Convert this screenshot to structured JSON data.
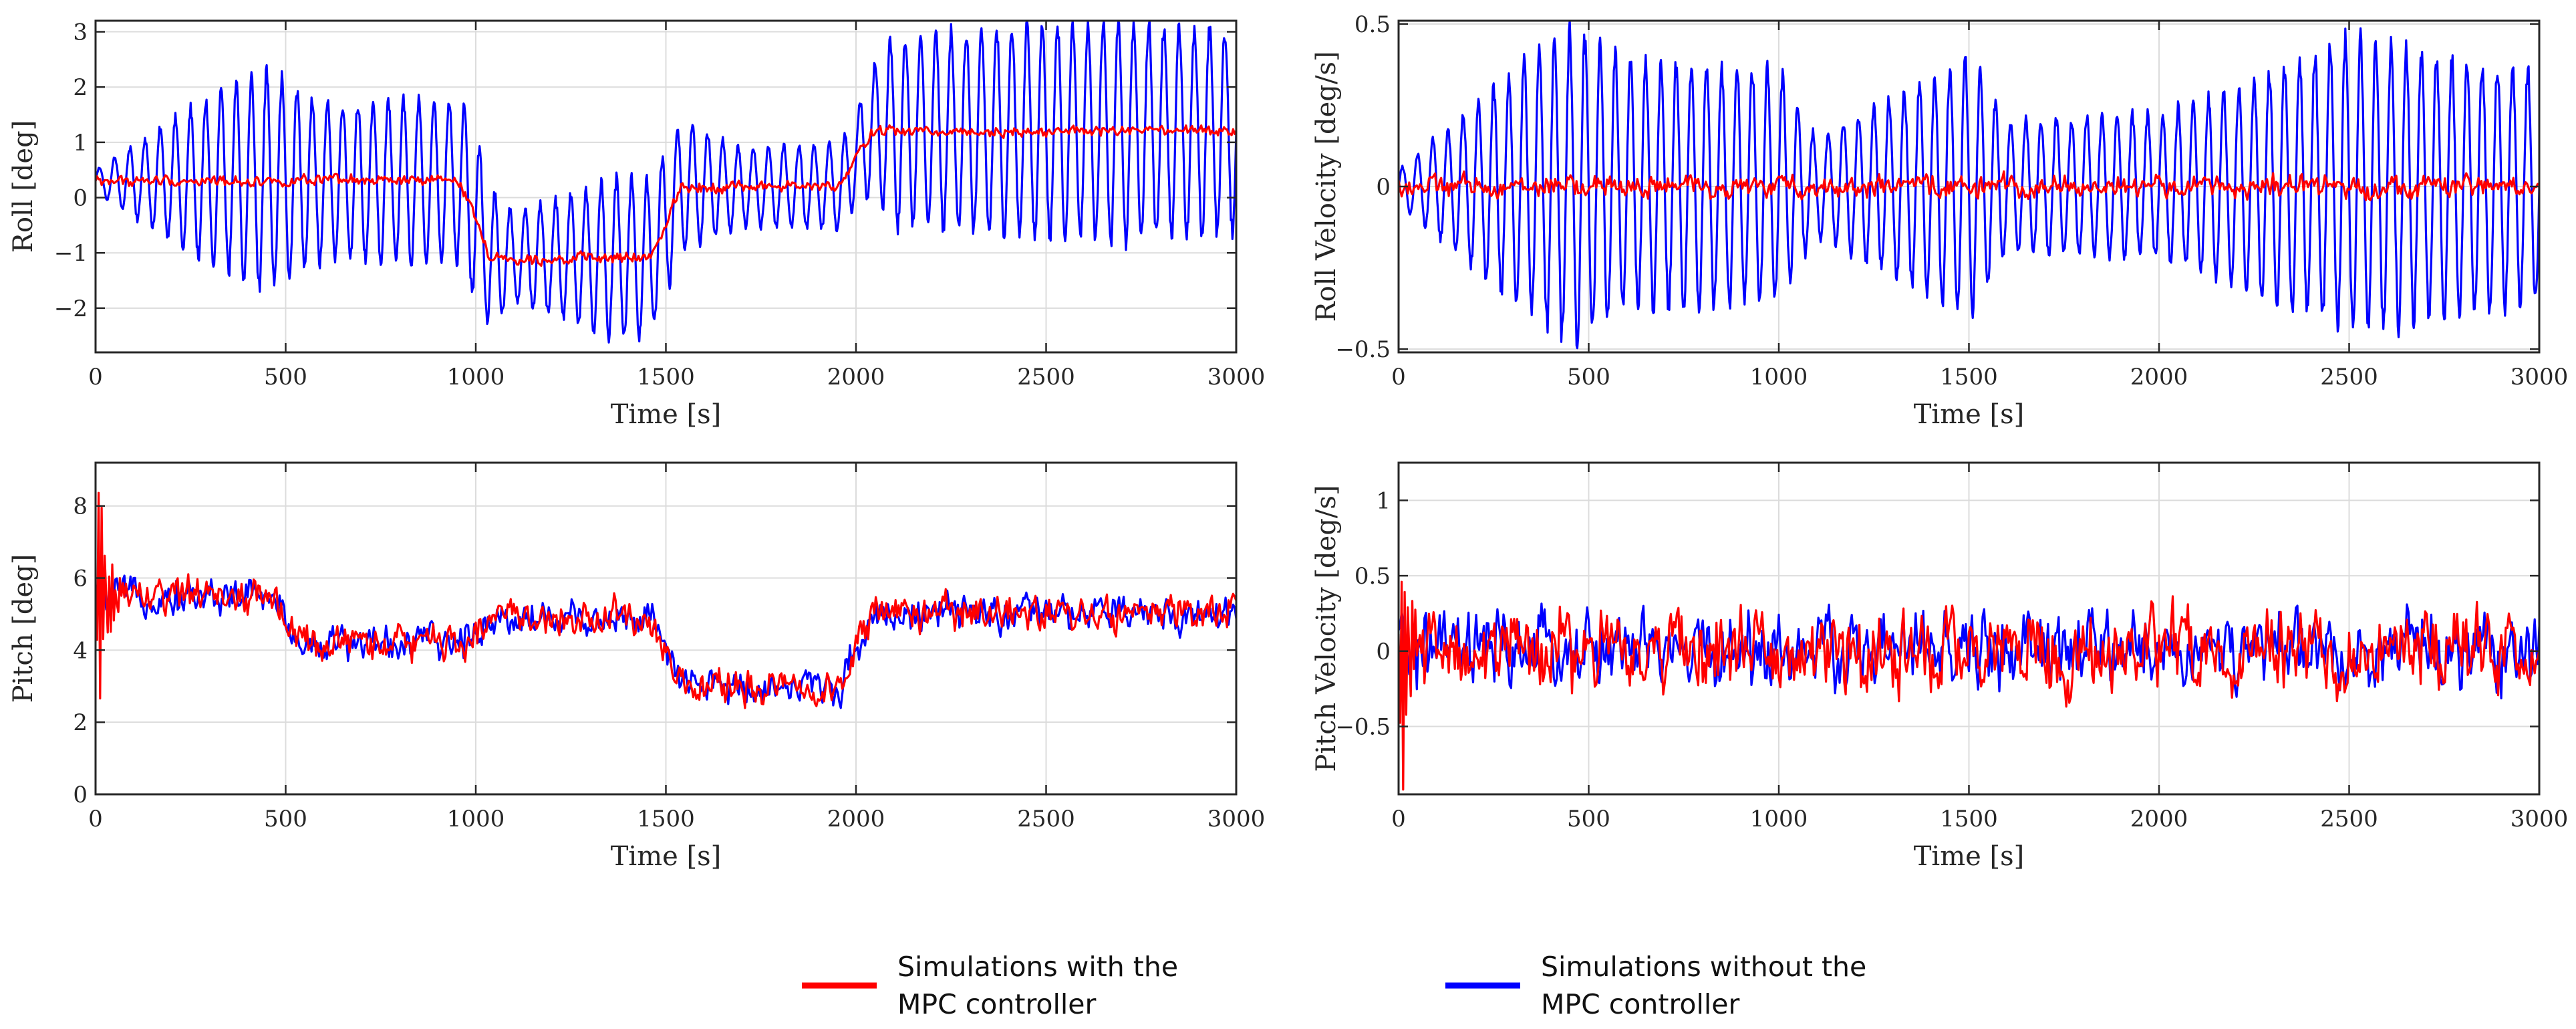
{
  "chart_data": [
    {
      "id": "roll",
      "type": "line",
      "xlabel": "Time [s]",
      "ylabel": "Roll [deg]",
      "xlim": [
        0,
        3000
      ],
      "ylim": [
        -2.8,
        3.2
      ],
      "xticks": [
        0,
        500,
        1000,
        1500,
        2000,
        2500,
        3000
      ],
      "xtick_labels": [
        "0",
        "500",
        "1000",
        "1500",
        "2000",
        "2500",
        "3000"
      ],
      "yticks": [
        -2,
        -1,
        0,
        1,
        2,
        3
      ],
      "ytick_labels": [
        "−2",
        "−1",
        "0",
        "1",
        "2",
        "3"
      ],
      "grid": true,
      "series": [
        {
          "name": "Simulations without the MPC controller",
          "color": "#0000ff",
          "oscillation_period_s": 40,
          "mean_segments": [
            {
              "start": 0,
              "end": 1000,
              "mean": 0.3
            },
            {
              "start": 1000,
              "end": 1500,
              "mean": -1.1
            },
            {
              "start": 1500,
              "end": 2000,
              "mean": 0.2
            },
            {
              "start": 2000,
              "end": 3000,
              "mean": 1.2
            }
          ],
          "amplitude_profile": [
            {
              "t": 0,
              "a": 0.2
            },
            {
              "t": 250,
              "a": 1.3
            },
            {
              "t": 450,
              "a": 2.0
            },
            {
              "t": 600,
              "a": 1.4
            },
            {
              "t": 1000,
              "a": 1.5
            },
            {
              "t": 1100,
              "a": 0.8
            },
            {
              "t": 1400,
              "a": 1.5
            },
            {
              "t": 1500,
              "a": 1.3
            },
            {
              "t": 1700,
              "a": 0.7
            },
            {
              "t": 2000,
              "a": 0.8
            },
            {
              "t": 2100,
              "a": 1.7
            },
            {
              "t": 2650,
              "a": 2.0
            },
            {
              "t": 3000,
              "a": 1.8
            }
          ]
        },
        {
          "name": "Simulations with the MPC controller",
          "color": "#ff0000",
          "mean_segments": [
            {
              "start": 0,
              "end": 1000,
              "mean": 0.3
            },
            {
              "start": 1000,
              "end": 1500,
              "mean": -1.1
            },
            {
              "start": 1500,
              "end": 2000,
              "mean": 0.2
            },
            {
              "start": 2000,
              "end": 3000,
              "mean": 1.2
            }
          ],
          "noise_amplitude": 0.12
        }
      ]
    },
    {
      "id": "roll-velocity",
      "type": "line",
      "xlabel": "Time [s]",
      "ylabel": "Roll Velocity [deg/s]",
      "xlim": [
        0,
        3000
      ],
      "ylim": [
        -0.51,
        0.51
      ],
      "xticks": [
        0,
        500,
        1000,
        1500,
        2000,
        2500,
        3000
      ],
      "xtick_labels": [
        "0",
        "500",
        "1000",
        "1500",
        "2000",
        "2500",
        "3000"
      ],
      "yticks": [
        -0.5,
        0,
        0.5
      ],
      "ytick_labels": [
        "−0.5",
        "0",
        "0.5"
      ],
      "grid": true,
      "series": [
        {
          "name": "Simulations without the MPC controller",
          "color": "#0000ff",
          "oscillation_period_s": 40,
          "mean": 0,
          "amplitude_profile": [
            {
              "t": 0,
              "a": 0.05
            },
            {
              "t": 300,
              "a": 0.35
            },
            {
              "t": 450,
              "a": 0.48
            },
            {
              "t": 600,
              "a": 0.38
            },
            {
              "t": 1000,
              "a": 0.35
            },
            {
              "t": 1100,
              "a": 0.15
            },
            {
              "t": 1500,
              "a": 0.4
            },
            {
              "t": 1600,
              "a": 0.2
            },
            {
              "t": 2000,
              "a": 0.22
            },
            {
              "t": 2200,
              "a": 0.3
            },
            {
              "t": 2500,
              "a": 0.45
            },
            {
              "t": 3000,
              "a": 0.35
            }
          ]
        },
        {
          "name": "Simulations with the MPC controller",
          "color": "#ff0000",
          "mean": 0,
          "noise_amplitude": 0.04
        }
      ]
    },
    {
      "id": "pitch",
      "type": "line",
      "xlabel": "Time [s]",
      "ylabel": "Pitch [deg]",
      "xlim": [
        0,
        3000
      ],
      "ylim": [
        0,
        9.2
      ],
      "xticks": [
        0,
        500,
        1000,
        1500,
        2000,
        2500,
        3000
      ],
      "xtick_labels": [
        "0",
        "500",
        "1000",
        "1500",
        "2000",
        "2500",
        "3000"
      ],
      "yticks": [
        0,
        2,
        4,
        6,
        8
      ],
      "ytick_labels": [
        "0",
        "2",
        "4",
        "6",
        "8"
      ],
      "grid": true,
      "series": [
        {
          "name": "Simulations without the MPC controller",
          "color": "#0000ff",
          "mean_segments": [
            {
              "start": 0,
              "end": 500,
              "mean": 5.5
            },
            {
              "start": 500,
              "end": 1000,
              "mean": 4.2
            },
            {
              "start": 1000,
              "end": 1500,
              "mean": 4.9
            },
            {
              "start": 1500,
              "end": 2000,
              "mean": 3.0
            },
            {
              "start": 2000,
              "end": 3000,
              "mean": 5.0
            }
          ],
          "noise_amplitude": 0.6
        },
        {
          "name": "Simulations with the MPC controller",
          "color": "#ff0000",
          "mean_segments": [
            {
              "start": 0,
              "end": 500,
              "mean": 5.5
            },
            {
              "start": 500,
              "end": 1000,
              "mean": 4.2
            },
            {
              "start": 1000,
              "end": 1500,
              "mean": 4.9
            },
            {
              "start": 1500,
              "end": 2000,
              "mean": 3.0
            },
            {
              "start": 2000,
              "end": 3000,
              "mean": 5.0
            }
          ],
          "noise_amplitude": 0.6,
          "startup_transient": true
        }
      ]
    },
    {
      "id": "pitch-velocity",
      "type": "line",
      "xlabel": "Time [s]",
      "ylabel": "Pitch Velocity [deg/s]",
      "xlim": [
        0,
        3000
      ],
      "ylim": [
        -0.95,
        1.25
      ],
      "xticks": [
        0,
        500,
        1000,
        1500,
        2000,
        2500,
        3000
      ],
      "xtick_labels": [
        "0",
        "500",
        "1000",
        "1500",
        "2000",
        "2500",
        "3000"
      ],
      "yticks": [
        -0.5,
        0,
        0.5,
        1
      ],
      "ytick_labels": [
        "−0.5",
        "0",
        "0.5",
        "1"
      ],
      "grid": true,
      "series": [
        {
          "name": "Simulations without the MPC controller",
          "color": "#0000ff",
          "mean": 0,
          "noise_amplitude": 0.3
        },
        {
          "name": "Simulations with the MPC controller",
          "color": "#ff0000",
          "mean": 0,
          "noise_amplitude": 0.32,
          "startup_transient": true
        }
      ]
    }
  ],
  "legend": {
    "placement": "bottom-center",
    "entries": [
      {
        "color": "#ff0000",
        "line1": "Simulations with the",
        "line2": "MPC controller"
      },
      {
        "color": "#0000ff",
        "line1": "Simulations without the",
        "line2": "MPC controller"
      }
    ]
  }
}
